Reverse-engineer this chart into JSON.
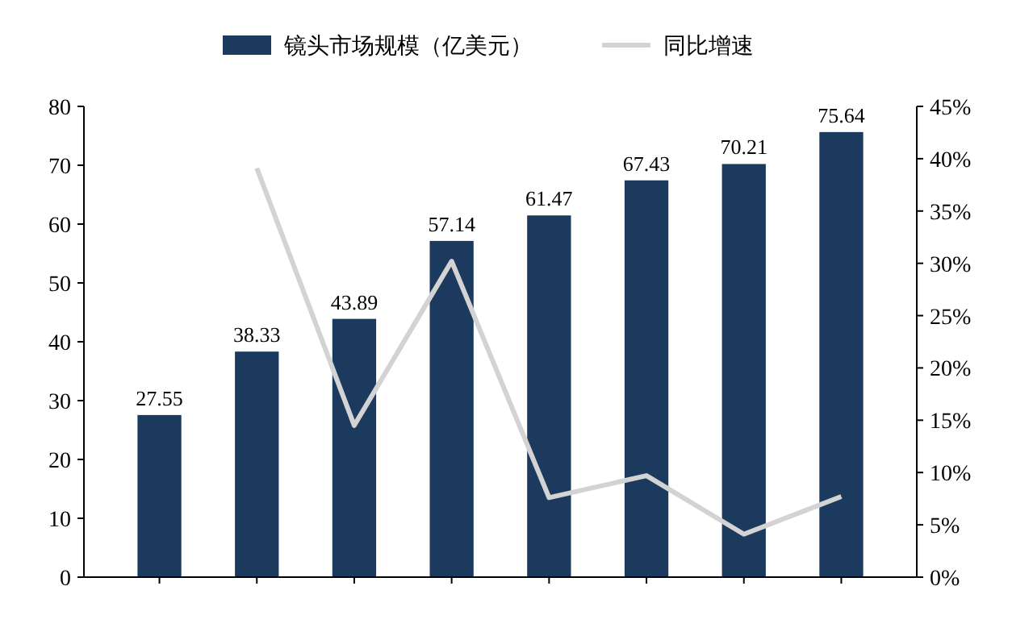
{
  "chart_data": {
    "type": "bar",
    "categories": [
      null,
      null,
      null,
      null,
      null,
      null,
      null,
      null
    ],
    "series": [
      {
        "name": "镜头市场规模（亿美元）",
        "color": "#1c3a5e",
        "values": [
          27.55,
          38.33,
          43.89,
          57.14,
          61.47,
          67.43,
          70.21,
          75.64
        ],
        "value_labels": [
          "27.55",
          "38.33",
          "43.89",
          "57.14",
          "61.47",
          "67.43",
          "70.21",
          "75.64"
        ]
      },
      {
        "name": "同比增速",
        "type": "line",
        "axis": "y2",
        "color": "#d3d3d3",
        "values": [
          null,
          39.1,
          14.5,
          30.2,
          7.6,
          9.7,
          4.1,
          7.7
        ]
      }
    ],
    "ylim": [
      0,
      80
    ],
    "yticks": [
      0,
      10,
      20,
      30,
      40,
      50,
      60,
      70,
      80
    ],
    "y2lim": [
      0,
      45
    ],
    "y2ticks": [
      {
        "value": 0,
        "label": "0%"
      },
      {
        "value": 5,
        "label": "5%"
      },
      {
        "value": 10,
        "label": "10%"
      },
      {
        "value": 15,
        "label": "15%"
      },
      {
        "value": 20,
        "label": "20%"
      },
      {
        "value": 25,
        "label": "25%"
      },
      {
        "value": 30,
        "label": "30%"
      },
      {
        "value": 35,
        "label": "35%"
      },
      {
        "value": 40,
        "label": "40%"
      },
      {
        "value": 45,
        "label": "45%"
      }
    ],
    "legend": "top",
    "grid": false,
    "marker": "none",
    "line_style": "solid"
  }
}
